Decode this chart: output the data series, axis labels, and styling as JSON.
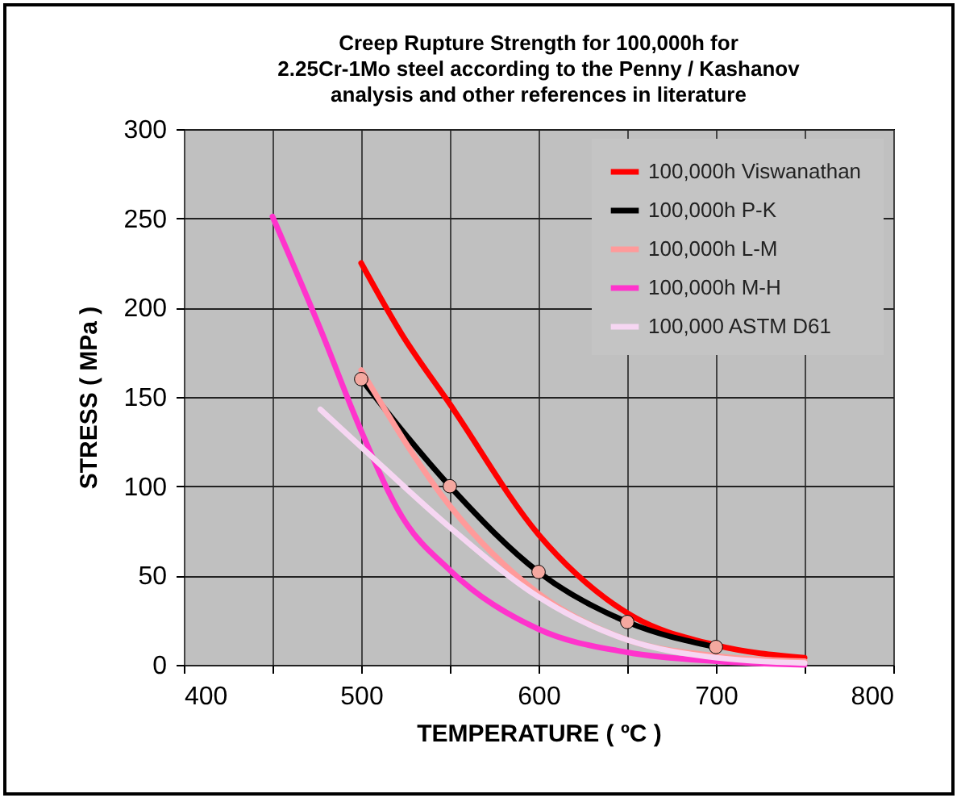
{
  "chart_data": {
    "type": "line",
    "title": "Creep Rupture Strength for 100,000h for\n2.25Cr-1Mo steel  according to the  Penny / Kashanov\nanalysis and other references in literature",
    "xlabel": "TEMPERATURE ( ºC )",
    "ylabel": "STRESS  ( MPa )",
    "xlim": [
      400,
      800
    ],
    "xticks": [
      400,
      {
        "value": 450,
        "label": null
      },
      500,
      {
        "value": 550,
        "label": null
      },
      600,
      {
        "value": 650,
        "label": null
      },
      700,
      {
        "value": 750,
        "label": null
      },
      800
    ],
    "ylim": [
      0,
      300
    ],
    "yticks": [
      0,
      50,
      100,
      150,
      200,
      250,
      300
    ],
    "grid": true,
    "legend": "top right",
    "line_style": "solid",
    "series": [
      {
        "name": "100,000h  Viswanathan",
        "color": "#ff0000",
        "marker": "none",
        "x": [
          500,
          523,
          550,
          600,
          650,
          700,
          750
        ],
        "values": [
          225,
          185,
          146,
          73,
          29,
          11,
          4
        ]
      },
      {
        "name": "100,000h   P-K",
        "color": "#000000",
        "marker": "circle",
        "x": [
          500,
          550,
          600,
          650,
          700
        ],
        "values": [
          160,
          100,
          52,
          24,
          10
        ]
      },
      {
        "name": "100,000h   L-M",
        "color": "#ff9a9a",
        "marker": "none",
        "x": [
          500,
          550,
          600,
          650,
          700,
          750
        ],
        "values": [
          165,
          89,
          40,
          14,
          5,
          2
        ]
      },
      {
        "name": "100,000h   M-H",
        "color": "#ff33cc",
        "marker": "none",
        "x": [
          450,
          477,
          500,
          523,
          550,
          600,
          650,
          700,
          750
        ],
        "values": [
          251,
          188,
          131,
          83,
          53,
          20,
          7,
          2,
          0
        ]
      },
      {
        "name": "100,000   ASTM D61",
        "color": "#f6d6f2",
        "marker": "none",
        "x": [
          477,
          500,
          550,
          600,
          650,
          700,
          750
        ],
        "values": [
          143,
          122,
          77,
          38,
          14,
          4,
          1
        ]
      }
    ]
  }
}
